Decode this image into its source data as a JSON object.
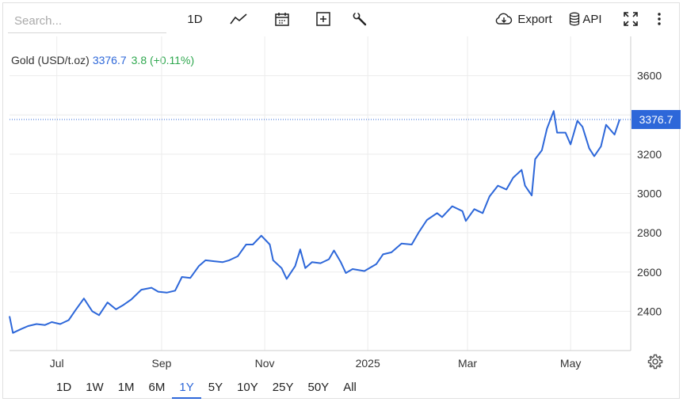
{
  "toolbar": {
    "search_placeholder": "Search...",
    "interval_label": "1D",
    "export_label": "Export",
    "api_label": "API"
  },
  "legend": {
    "name": "Gold (USD/t.oz)",
    "price": "3376.7",
    "change": "3.8 (+0.11%)"
  },
  "price_tag": "3376.7",
  "ranges": [
    "1D",
    "1W",
    "1M",
    "6M",
    "1Y",
    "5Y",
    "10Y",
    "25Y",
    "50Y",
    "All"
  ],
  "active_range": "1Y",
  "colors": {
    "line": "#2d67d9",
    "change": "#2fa84f",
    "active_range": "#2d67d9"
  },
  "chart_data": {
    "type": "line",
    "title": "",
    "xlabel": "",
    "ylabel": "",
    "ylim": [
      2200,
      3800
    ],
    "y_ticks": [
      2400,
      2600,
      2800,
      3000,
      3200,
      3400,
      3600
    ],
    "x_ticks": [
      {
        "label": "Jul",
        "date": "2024-07-01"
      },
      {
        "label": "Sep",
        "date": "2024-09-01"
      },
      {
        "label": "Nov",
        "date": "2024-11-01"
      },
      {
        "label": "2025",
        "date": "2025-01-01"
      },
      {
        "label": "Mar",
        "date": "2025-03-01"
      },
      {
        "label": "May",
        "date": "2025-05-01"
      }
    ],
    "xlim": [
      "2024-06-03",
      "2025-05-30"
    ],
    "last_value": 3376.7,
    "grid": true,
    "series": [
      {
        "values": [
          [
            "2024-06-03",
            2375
          ],
          [
            "2024-06-05",
            2290
          ],
          [
            "2024-06-10",
            2310
          ],
          [
            "2024-06-14",
            2325
          ],
          [
            "2024-06-19",
            2335
          ],
          [
            "2024-06-24",
            2330
          ],
          [
            "2024-06-28",
            2345
          ],
          [
            "2024-07-03",
            2335
          ],
          [
            "2024-07-08",
            2355
          ],
          [
            "2024-07-12",
            2405
          ],
          [
            "2024-07-17",
            2465
          ],
          [
            "2024-07-22",
            2400
          ],
          [
            "2024-07-26",
            2380
          ],
          [
            "2024-07-31",
            2445
          ],
          [
            "2024-08-05",
            2410
          ],
          [
            "2024-08-09",
            2430
          ],
          [
            "2024-08-14",
            2460
          ],
          [
            "2024-08-20",
            2510
          ],
          [
            "2024-08-26",
            2520
          ],
          [
            "2024-08-30",
            2500
          ],
          [
            "2024-09-04",
            2495
          ],
          [
            "2024-09-09",
            2505
          ],
          [
            "2024-09-13",
            2575
          ],
          [
            "2024-09-18",
            2570
          ],
          [
            "2024-09-23",
            2630
          ],
          [
            "2024-09-27",
            2660
          ],
          [
            "2024-10-02",
            2655
          ],
          [
            "2024-10-07",
            2650
          ],
          [
            "2024-10-11",
            2660
          ],
          [
            "2024-10-16",
            2680
          ],
          [
            "2024-10-21",
            2740
          ],
          [
            "2024-10-25",
            2740
          ],
          [
            "2024-10-30",
            2785
          ],
          [
            "2024-11-04",
            2740
          ],
          [
            "2024-11-06",
            2660
          ],
          [
            "2024-11-11",
            2620
          ],
          [
            "2024-11-14",
            2565
          ],
          [
            "2024-11-19",
            2630
          ],
          [
            "2024-11-22",
            2715
          ],
          [
            "2024-11-25",
            2620
          ],
          [
            "2024-11-29",
            2650
          ],
          [
            "2024-12-04",
            2645
          ],
          [
            "2024-12-09",
            2665
          ],
          [
            "2024-12-12",
            2710
          ],
          [
            "2024-12-16",
            2650
          ],
          [
            "2024-12-19",
            2595
          ],
          [
            "2024-12-23",
            2615
          ],
          [
            "2024-12-30",
            2605
          ],
          [
            "2025-01-06",
            2640
          ],
          [
            "2025-01-10",
            2690
          ],
          [
            "2025-01-15",
            2700
          ],
          [
            "2025-01-21",
            2745
          ],
          [
            "2025-01-27",
            2740
          ],
          [
            "2025-01-31",
            2800
          ],
          [
            "2025-02-05",
            2865
          ],
          [
            "2025-02-11",
            2900
          ],
          [
            "2025-02-14",
            2880
          ],
          [
            "2025-02-20",
            2935
          ],
          [
            "2025-02-26",
            2910
          ],
          [
            "2025-02-28",
            2860
          ],
          [
            "2025-03-05",
            2920
          ],
          [
            "2025-03-10",
            2900
          ],
          [
            "2025-03-14",
            2985
          ],
          [
            "2025-03-19",
            3040
          ],
          [
            "2025-03-24",
            3020
          ],
          [
            "2025-03-28",
            3080
          ],
          [
            "2025-04-02",
            3120
          ],
          [
            "2025-04-04",
            3040
          ],
          [
            "2025-04-08",
            2990
          ],
          [
            "2025-04-10",
            3175
          ],
          [
            "2025-04-14",
            3220
          ],
          [
            "2025-04-17",
            3330
          ],
          [
            "2025-04-21",
            3420
          ],
          [
            "2025-04-23",
            3310
          ],
          [
            "2025-04-28",
            3310
          ],
          [
            "2025-05-01",
            3250
          ],
          [
            "2025-05-05",
            3370
          ],
          [
            "2025-05-08",
            3340
          ],
          [
            "2025-05-12",
            3230
          ],
          [
            "2025-05-15",
            3190
          ],
          [
            "2025-05-19",
            3240
          ],
          [
            "2025-05-22",
            3350
          ],
          [
            "2025-05-27",
            3300
          ],
          [
            "2025-05-30",
            3376.7
          ]
        ]
      }
    ]
  }
}
